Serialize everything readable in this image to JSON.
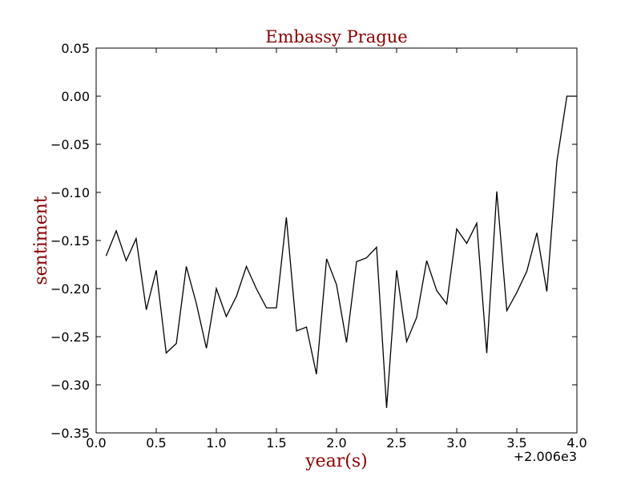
{
  "chart_data": {
    "type": "line",
    "title": "Embassy Prague",
    "xlabel": "year(s)",
    "ylabel": "sentiment",
    "x_offset_label": "+2.006e3",
    "xlim": [
      0.0,
      4.0
    ],
    "ylim": [
      -0.35,
      0.05
    ],
    "x_ticks": [
      "0.0",
      "0.5",
      "1.0",
      "1.5",
      "2.0",
      "2.5",
      "3.0",
      "3.5",
      "4.0"
    ],
    "x_tick_values": [
      0.0,
      0.5,
      1.0,
      1.5,
      2.0,
      2.5,
      3.0,
      3.5,
      4.0
    ],
    "y_ticks": [
      "0.05",
      "0.00",
      "−0.05",
      "−0.10",
      "−0.15",
      "−0.20",
      "−0.25",
      "−0.30",
      "−0.35"
    ],
    "y_tick_values": [
      0.05,
      0.0,
      -0.05,
      -0.1,
      -0.15,
      -0.2,
      -0.25,
      -0.3,
      -0.35
    ],
    "grid": false,
    "line_color": "#000000",
    "title_color": "#8b0000",
    "series": [
      {
        "x": [
          0.083,
          0.167,
          0.25,
          0.333,
          0.417,
          0.5,
          0.583,
          0.667,
          0.75,
          0.833,
          0.917,
          1.0,
          1.083,
          1.167,
          1.25,
          1.333,
          1.417,
          1.5,
          1.583,
          1.667,
          1.75,
          1.833,
          1.917,
          2.0,
          2.083,
          2.167,
          2.25,
          2.333,
          2.417,
          2.5,
          2.583,
          2.667,
          2.75,
          2.833,
          2.917,
          3.0,
          3.083,
          3.167,
          3.25,
          3.333,
          3.417,
          3.5,
          3.583,
          3.667,
          3.75,
          3.833,
          3.917,
          4.0
        ],
        "values": [
          -0.166,
          -0.14,
          -0.171,
          -0.148,
          -0.222,
          -0.181,
          -0.267,
          -0.257,
          -0.177,
          -0.215,
          -0.262,
          -0.2,
          -0.229,
          -0.208,
          -0.177,
          -0.2,
          -0.22,
          -0.22,
          -0.126,
          -0.244,
          -0.24,
          -0.289,
          -0.169,
          -0.196,
          -0.256,
          -0.172,
          -0.168,
          -0.157,
          -0.324,
          -0.181,
          -0.255,
          -0.23,
          -0.171,
          -0.202,
          -0.216,
          -0.138,
          -0.153,
          -0.132,
          -0.267,
          -0.099,
          -0.223,
          -0.204,
          -0.182,
          -0.142,
          -0.203,
          -0.068,
          0.0,
          0.0
        ]
      }
    ]
  }
}
